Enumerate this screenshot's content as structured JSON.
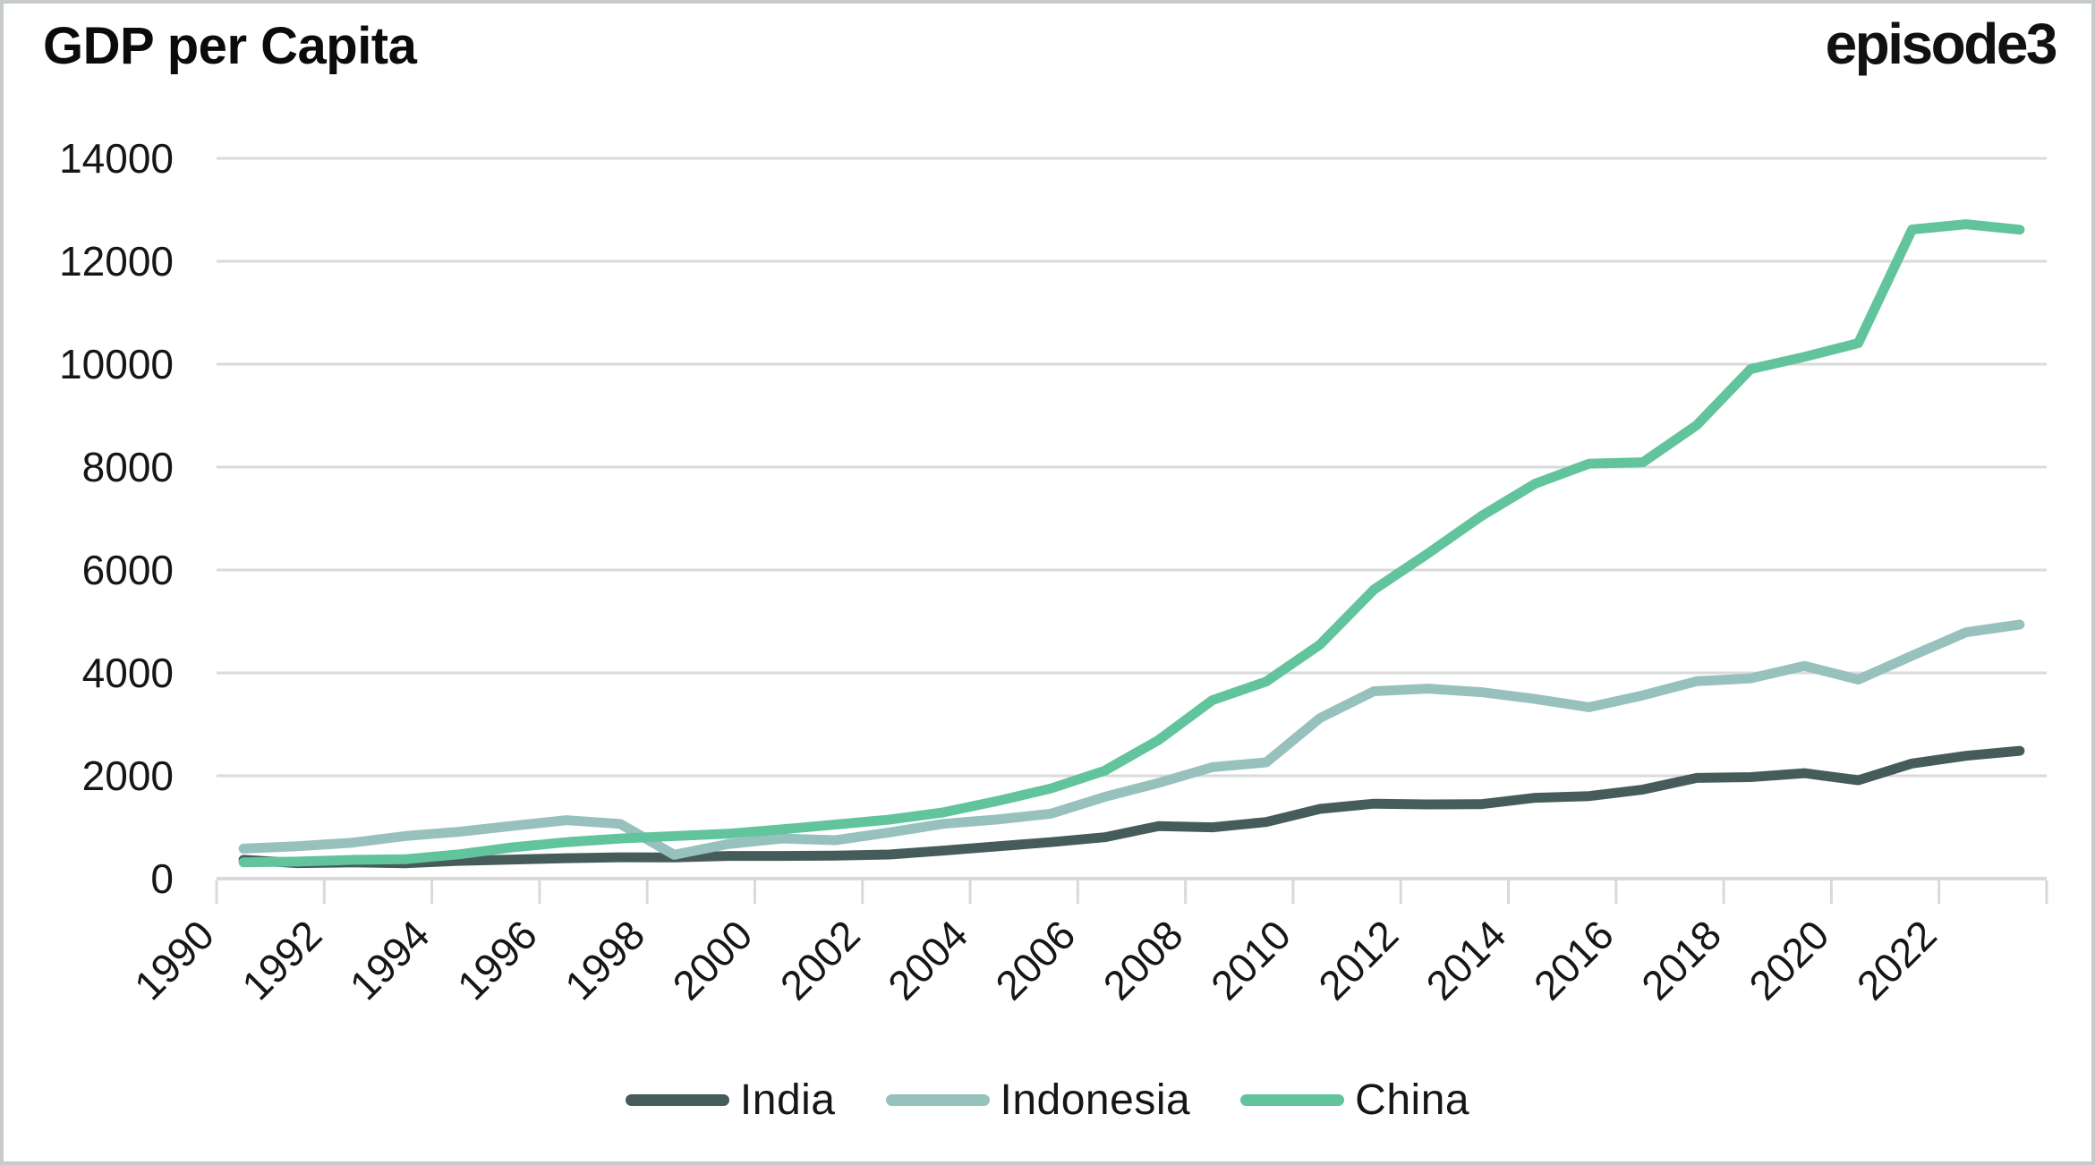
{
  "header": {
    "title": "GDP per Capita",
    "brand_logo": "episode3"
  },
  "colors": {
    "background": "#ffffff",
    "border": "#c8cbcc",
    "gridline": "#dadada",
    "axis": "#d9d9d9",
    "text": "#161616"
  },
  "chart_data": {
    "type": "line",
    "title": "GDP per Capita",
    "xlabel": "",
    "ylabel": "",
    "ylim": [
      0,
      14000
    ],
    "grid": "horizontal-only",
    "legend_position": "bottom-center",
    "y_axis_ticks": [
      0,
      2000,
      4000,
      6000,
      8000,
      10000,
      12000,
      14000
    ],
    "x_axis_tick_labels": [
      "1990",
      "1992",
      "1994",
      "1996",
      "1998",
      "2000",
      "2002",
      "2004",
      "2006",
      "2008",
      "2010",
      "2012",
      "2014",
      "2016",
      "2018",
      "2020",
      "2022"
    ],
    "x": [
      1990,
      1991,
      1992,
      1993,
      1994,
      1995,
      1996,
      1997,
      1998,
      1999,
      2000,
      2001,
      2002,
      2003,
      2004,
      2005,
      2006,
      2007,
      2008,
      2009,
      2010,
      2011,
      2012,
      2013,
      2014,
      2015,
      2016,
      2017,
      2018,
      2019,
      2020,
      2021,
      2022,
      2023
    ],
    "series": [
      {
        "name": "India",
        "color": "#465c5b",
        "values": [
          367,
          303,
          316,
          301,
          346,
          373,
          399,
          415,
          413,
          441,
          442,
          449,
          470,
          546,
          627,
          710,
          806,
          1022,
          998,
          1101,
          1357,
          1458,
          1443,
          1449,
          1573,
          1605,
          1732,
          1958,
          1974,
          2050,
          1913,
          2238,
          2388,
          2485
        ]
      },
      {
        "name": "Indonesia",
        "color": "#97c1bd",
        "values": [
          585,
          632,
          697,
          827,
          912,
          1026,
          1137,
          1064,
          464,
          671,
          780,
          748,
          900,
          1066,
          1150,
          1263,
          1590,
          1860,
          2167,
          2261,
          3122,
          3643,
          3694,
          3624,
          3492,
          3332,
          3563,
          3838,
          3894,
          4135,
          3870,
          4334,
          4788,
          4940
        ]
      },
      {
        "name": "China",
        "color": "#61c49d",
        "values": [
          318,
          333,
          366,
          377,
          473,
          609,
          709,
          781,
          828,
          873,
          959,
          1053,
          1148,
          1288,
          1508,
          1753,
          2099,
          2694,
          3468,
          3832,
          4550,
          5618,
          6316,
          7050,
          7678,
          8066,
          8094,
          8816,
          9905,
          10143,
          10408,
          12617,
          12720,
          12614
        ]
      }
    ]
  }
}
